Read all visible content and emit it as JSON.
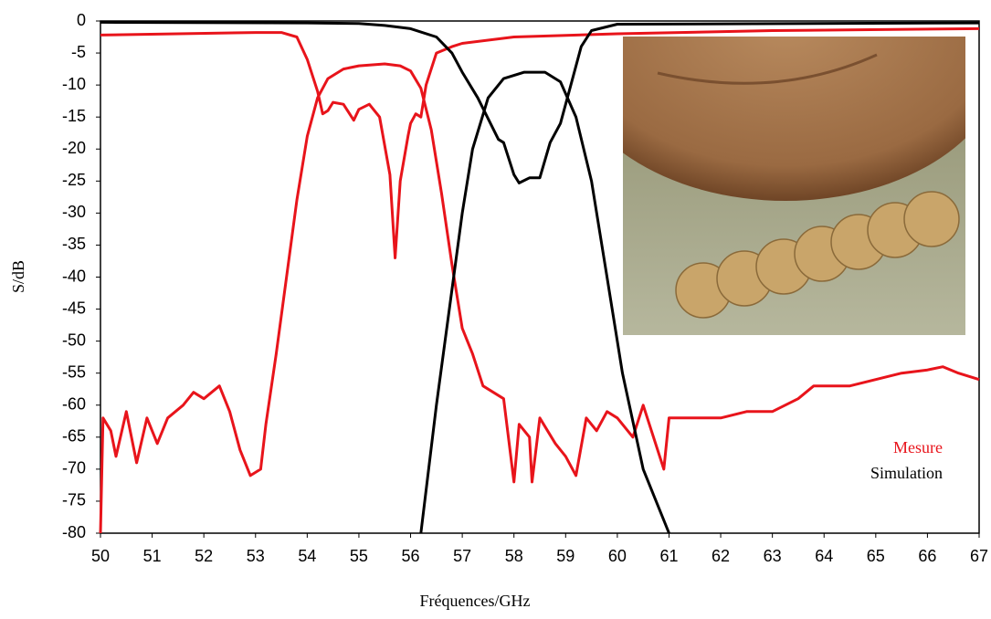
{
  "chart_data": {
    "type": "line",
    "ylabel": "S/dB",
    "xlabel": "Fréquences/GHz",
    "xlim": [
      50,
      67
    ],
    "xticks": [
      50,
      51,
      52,
      53,
      54,
      55,
      56,
      57,
      58,
      59,
      60,
      61,
      62,
      63,
      64,
      65,
      66,
      67
    ],
    "ylim": [
      -80,
      0
    ],
    "yticks": [
      0,
      -5,
      -10,
      -15,
      -20,
      -25,
      -30,
      -35,
      -40,
      -45,
      -50,
      -55,
      -60,
      -65,
      -70,
      -75,
      -80
    ],
    "legend": [
      {
        "label": "Mesure",
        "color": "#e8141b"
      },
      {
        "label": "Simulation",
        "color": "#000000"
      }
    ],
    "series": [
      {
        "color": "#e8141b",
        "x": [
          50,
          50.05,
          50.2,
          50.3,
          50.5,
          50.7,
          50.9,
          51.1,
          51.3,
          51.6,
          51.8,
          52,
          52.3,
          52.5,
          52.7,
          52.9,
          53.1,
          53.2,
          53.4,
          53.6,
          53.8,
          54,
          54.2,
          54.4,
          54.7,
          55,
          55.5,
          55.8,
          56,
          56.2,
          56.4,
          56.6,
          56.8,
          57,
          57.2,
          57.4,
          57.6,
          57.8,
          58,
          58.1,
          58.3,
          58.35,
          58.5,
          58.8,
          59,
          59.2,
          59.4,
          59.6,
          59.8,
          60,
          60.3,
          60.5,
          60.9,
          61,
          61.5,
          62,
          62.5,
          63,
          63.5,
          63.8,
          64,
          64.5,
          65,
          65.5,
          66,
          66.3,
          66.6,
          67
        ],
        "values": [
          -80,
          -62,
          -64,
          -68,
          -61,
          -69,
          -62,
          -66,
          -62,
          -60,
          -58,
          -59,
          -57,
          -61,
          -67,
          -71,
          -70,
          -63,
          -52,
          -40,
          -28,
          -18,
          -12,
          -9,
          -7.5,
          -7,
          -6.7,
          -7,
          -7.8,
          -10.5,
          -17,
          -27,
          -38,
          -48,
          -52,
          -57,
          -58,
          -59,
          -72,
          -63,
          -65,
          -72,
          -62,
          -66,
          -68,
          -71,
          -62,
          -64,
          -61,
          -62,
          -65,
          -60,
          -70,
          -62,
          -62,
          -62,
          -61,
          -61,
          -59,
          -57,
          -57,
          -57,
          -56,
          -55,
          -54.5,
          -54,
          -55,
          -56
        ]
      },
      {
        "color": "#e8141b",
        "x": [
          50,
          53,
          53.5,
          53.8,
          54,
          54.2,
          54.3,
          54.4,
          54.5,
          54.7,
          54.9,
          55,
          55.2,
          55.4,
          55.6,
          55.7,
          55.8,
          55.95,
          56,
          56.1,
          56.2,
          56.3,
          56.5,
          56.8,
          57,
          58,
          60,
          63,
          67
        ],
        "values": [
          -2.2,
          -1.8,
          -1.8,
          -2.5,
          -6,
          -11,
          -14.5,
          -14,
          -12.7,
          -13,
          -15.5,
          -13.8,
          -13,
          -15,
          -24,
          -37,
          -25,
          -18,
          -16,
          -14.5,
          -15,
          -10,
          -5,
          -4,
          -3.5,
          -2.5,
          -2,
          -1.5,
          -1.2
        ]
      },
      {
        "color": "#000000",
        "x": [
          56.2,
          56.5,
          56.8,
          57,
          57.2,
          57.5,
          57.8,
          58.2,
          58.6,
          58.9,
          59.2,
          59.5,
          59.8,
          60.1,
          60.5,
          61
        ],
        "values": [
          -80,
          -60,
          -42,
          -30,
          -20,
          -12,
          -9,
          -8,
          -8,
          -9.5,
          -15,
          -25,
          -40,
          -55,
          -70,
          -80
        ]
      },
      {
        "color": "#000000",
        "x": [
          50,
          54,
          55,
          55.5,
          56,
          56.5,
          56.8,
          57,
          57.3,
          57.7,
          57.8,
          58,
          58.1,
          58.3,
          58.5,
          58.7,
          58.9,
          59.1,
          59.3,
          59.5,
          60,
          67
        ],
        "values": [
          -0.2,
          -0.3,
          -0.4,
          -0.7,
          -1.2,
          -2.5,
          -5,
          -8,
          -12,
          -18.5,
          -19,
          -24,
          -25.3,
          -24.5,
          -24.5,
          -19,
          -16,
          -10,
          -4,
          -1.5,
          -0.5,
          -0.3
        ]
      }
    ]
  }
}
